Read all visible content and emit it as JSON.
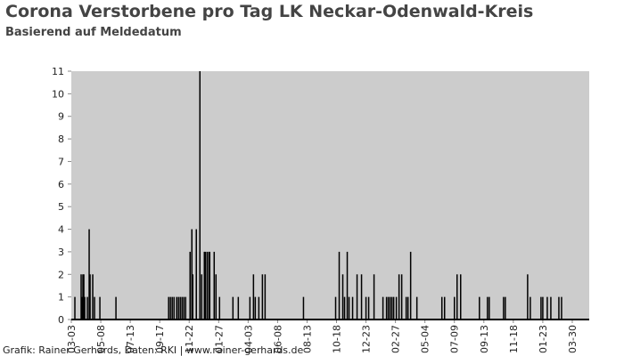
{
  "chart_data": {
    "type": "bar",
    "title": "Corona Verstorbene pro Tag LK Neckar-Odenwald-Kreis",
    "subtitle": "Basierend auf Meldedatum",
    "source": "Grafik: Rainer Gerhards, Daten: RKI | www.rainer-gerhards.de",
    "color": "#000000",
    "x": [
      8,
      22,
      24,
      26,
      28,
      30,
      36,
      40,
      42,
      48,
      52,
      64,
      100,
      218,
      222,
      226,
      230,
      236,
      240,
      244,
      248,
      252,
      256,
      266,
      270,
      272,
      280,
      288,
      292,
      298,
      300,
      304,
      308,
      310,
      320,
      324,
      332,
      362,
      374,
      400,
      408,
      412,
      420,
      428,
      434,
      520,
      592,
      600,
      608,
      612,
      618,
      622,
      630,
      640,
      650,
      660,
      666,
      678,
      698,
      706,
      710,
      714,
      718,
      722,
      728,
      734,
      740,
      750,
      754,
      760,
      774,
      830,
      836,
      858,
      864,
      872,
      914,
      932,
      936,
      968,
      972,
      1022,
      1028,
      1052,
      1056,
      1066,
      1074,
      1092,
      1098
    ],
    "values": [
      1,
      2,
      1,
      2,
      2,
      1,
      1,
      4,
      2,
      2,
      1,
      1,
      1,
      1,
      1,
      1,
      1,
      1,
      1,
      1,
      1,
      1,
      1,
      3,
      4,
      2,
      4,
      11,
      2,
      3,
      3,
      3,
      3,
      3,
      3,
      2,
      1,
      1,
      1,
      1,
      2,
      1,
      1,
      2,
      2,
      1,
      1,
      3,
      2,
      1,
      3,
      1,
      1,
      2,
      2,
      1,
      1,
      2,
      1,
      1,
      1,
      1,
      1,
      1,
      1,
      2,
      2,
      1,
      1,
      3,
      1,
      1,
      1,
      1,
      2,
      2,
      1,
      1,
      1,
      1,
      1,
      2,
      1,
      1,
      1,
      1,
      1,
      1,
      1
    ],
    "xlim": [
      0,
      1160
    ],
    "xticks": [
      {
        "value": 0,
        "label": "03-03"
      },
      {
        "value": 66,
        "label": "05-08"
      },
      {
        "value": 132,
        "label": "07-13"
      },
      {
        "value": 198,
        "label": "09-17"
      },
      {
        "value": 264,
        "label": "11-22"
      },
      {
        "value": 330,
        "label": "01-27"
      },
      {
        "value": 396,
        "label": "04-03"
      },
      {
        "value": 462,
        "label": "06-08"
      },
      {
        "value": 528,
        "label": "08-13"
      },
      {
        "value": 594,
        "label": "10-18"
      },
      {
        "value": 660,
        "label": "12-23"
      },
      {
        "value": 726,
        "label": "02-27"
      },
      {
        "value": 792,
        "label": "05-04"
      },
      {
        "value": 858,
        "label": "07-09"
      },
      {
        "value": 924,
        "label": "09-13"
      },
      {
        "value": 990,
        "label": "11-18"
      },
      {
        "value": 1056,
        "label": "01-23"
      },
      {
        "value": 1122,
        "label": "03-30"
      }
    ],
    "ylim": [
      0,
      11
    ],
    "yticks": [
      0,
      1,
      2,
      3,
      4,
      5,
      6,
      7,
      8,
      9,
      10,
      11
    ]
  }
}
